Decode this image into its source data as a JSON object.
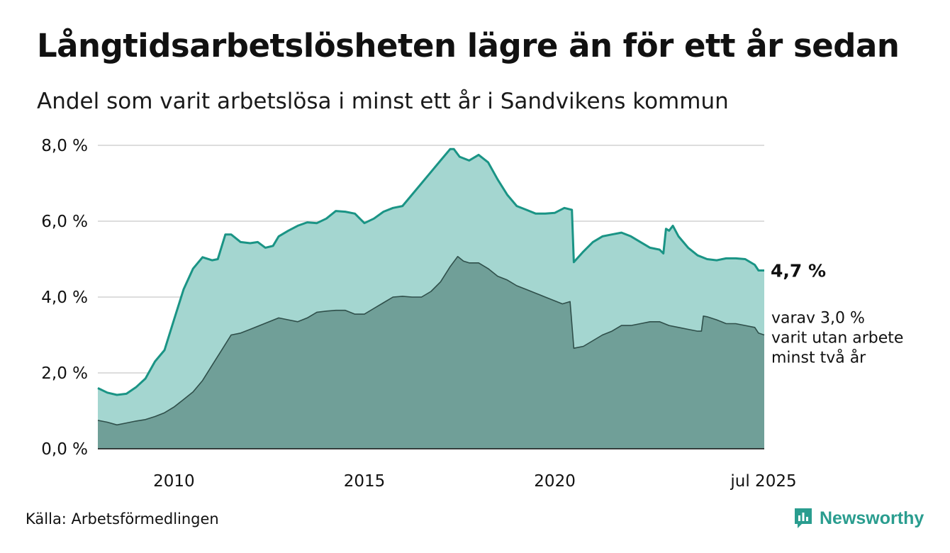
{
  "title": "Långtidsarbetslösheten lägre än för ett år sedan",
  "subtitle": "Andel som varit arbetslösa i minst ett år i Sandvikens kommun",
  "source": "Källa: Arbetsförmedlingen",
  "brand": "Newsworthy",
  "end_label": "4,7 %",
  "sub_label_lines": [
    "varav 3,0 %",
    "varit utan arbete",
    "minst två år"
  ],
  "colors": {
    "upper_line": "#1a9485",
    "upper_fill": "#a4d6d0",
    "lower_line": "#2f4f4a",
    "lower_fill": "#709f98",
    "grid": "#dddddd",
    "brand": "#2a9d8f"
  },
  "chart_data": {
    "type": "area",
    "title": "Långtidsarbetslösheten lägre än för ett år sedan",
    "ylim": [
      0,
      8
    ],
    "xlim": [
      2008.0,
      2025.5
    ],
    "y_ticks": [
      0,
      2,
      4,
      6,
      8
    ],
    "y_tick_labels": [
      "0,0 %",
      "2,0 %",
      "4,0 %",
      "6,0 %",
      "8,0 %"
    ],
    "x_ticks": [
      2010,
      2015,
      2020,
      2025.5
    ],
    "x_tick_labels": [
      "2010",
      "2015",
      "2020",
      "jul 2025"
    ],
    "grid": true,
    "series": [
      {
        "points": [
          [
            2008.0,
            1.6
          ],
          [
            2008.25,
            1.48
          ],
          [
            2008.5,
            1.42
          ],
          [
            2008.75,
            1.45
          ],
          [
            2009.0,
            1.62
          ],
          [
            2009.25,
            1.85
          ],
          [
            2009.5,
            2.3
          ],
          [
            2009.75,
            2.6
          ],
          [
            2010.0,
            3.4
          ],
          [
            2010.25,
            4.2
          ],
          [
            2010.5,
            4.75
          ],
          [
            2010.75,
            5.05
          ],
          [
            2011.0,
            4.97
          ],
          [
            2011.15,
            5.0
          ],
          [
            2011.35,
            5.65
          ],
          [
            2011.5,
            5.65
          ],
          [
            2011.75,
            5.45
          ],
          [
            2012.0,
            5.42
          ],
          [
            2012.2,
            5.45
          ],
          [
            2012.4,
            5.3
          ],
          [
            2012.6,
            5.35
          ],
          [
            2012.75,
            5.6
          ],
          [
            2013.0,
            5.75
          ],
          [
            2013.25,
            5.88
          ],
          [
            2013.5,
            5.97
          ],
          [
            2013.75,
            5.95
          ],
          [
            2014.0,
            6.07
          ],
          [
            2014.25,
            6.27
          ],
          [
            2014.5,
            6.25
          ],
          [
            2014.75,
            6.2
          ],
          [
            2015.0,
            5.95
          ],
          [
            2015.25,
            6.07
          ],
          [
            2015.5,
            6.25
          ],
          [
            2015.75,
            6.35
          ],
          [
            2016.0,
            6.4
          ],
          [
            2016.25,
            6.7
          ],
          [
            2016.5,
            7.0
          ],
          [
            2016.75,
            7.3
          ],
          [
            2017.0,
            7.6
          ],
          [
            2017.25,
            7.9
          ],
          [
            2017.35,
            7.9
          ],
          [
            2017.5,
            7.7
          ],
          [
            2017.75,
            7.6
          ],
          [
            2018.0,
            7.75
          ],
          [
            2018.25,
            7.55
          ],
          [
            2018.5,
            7.1
          ],
          [
            2018.75,
            6.7
          ],
          [
            2019.0,
            6.4
          ],
          [
            2019.25,
            6.3
          ],
          [
            2019.5,
            6.2
          ],
          [
            2019.75,
            6.2
          ],
          [
            2020.0,
            6.22
          ],
          [
            2020.25,
            6.35
          ],
          [
            2020.45,
            6.3
          ],
          [
            2020.5,
            4.92
          ],
          [
            2020.75,
            5.2
          ],
          [
            2021.0,
            5.45
          ],
          [
            2021.25,
            5.6
          ],
          [
            2021.5,
            5.65
          ],
          [
            2021.75,
            5.7
          ],
          [
            2022.0,
            5.6
          ],
          [
            2022.25,
            5.45
          ],
          [
            2022.5,
            5.3
          ],
          [
            2022.75,
            5.25
          ],
          [
            2022.85,
            5.15
          ],
          [
            2022.92,
            5.8
          ],
          [
            2023.0,
            5.75
          ],
          [
            2023.1,
            5.88
          ],
          [
            2023.25,
            5.6
          ],
          [
            2023.5,
            5.3
          ],
          [
            2023.75,
            5.1
          ],
          [
            2024.0,
            5.0
          ],
          [
            2024.25,
            4.97
          ],
          [
            2024.5,
            5.02
          ],
          [
            2024.75,
            5.02
          ],
          [
            2025.0,
            5.0
          ],
          [
            2025.25,
            4.85
          ],
          [
            2025.35,
            4.7
          ],
          [
            2025.5,
            4.7
          ]
        ]
      },
      {
        "points": [
          [
            2008.0,
            0.75
          ],
          [
            2008.25,
            0.7
          ],
          [
            2008.5,
            0.63
          ],
          [
            2008.75,
            0.68
          ],
          [
            2009.0,
            0.73
          ],
          [
            2009.25,
            0.77
          ],
          [
            2009.5,
            0.85
          ],
          [
            2009.75,
            0.95
          ],
          [
            2010.0,
            1.1
          ],
          [
            2010.25,
            1.3
          ],
          [
            2010.5,
            1.5
          ],
          [
            2010.75,
            1.8
          ],
          [
            2011.0,
            2.2
          ],
          [
            2011.25,
            2.6
          ],
          [
            2011.5,
            3.0
          ],
          [
            2011.75,
            3.05
          ],
          [
            2012.0,
            3.15
          ],
          [
            2012.25,
            3.25
          ],
          [
            2012.5,
            3.35
          ],
          [
            2012.75,
            3.45
          ],
          [
            2013.0,
            3.4
          ],
          [
            2013.25,
            3.35
          ],
          [
            2013.5,
            3.45
          ],
          [
            2013.75,
            3.6
          ],
          [
            2014.0,
            3.63
          ],
          [
            2014.25,
            3.65
          ],
          [
            2014.5,
            3.65
          ],
          [
            2014.75,
            3.55
          ],
          [
            2015.0,
            3.55
          ],
          [
            2015.25,
            3.7
          ],
          [
            2015.5,
            3.85
          ],
          [
            2015.75,
            4.0
          ],
          [
            2016.0,
            4.02
          ],
          [
            2016.25,
            4.0
          ],
          [
            2016.5,
            4.0
          ],
          [
            2016.75,
            4.15
          ],
          [
            2017.0,
            4.4
          ],
          [
            2017.25,
            4.8
          ],
          [
            2017.45,
            5.07
          ],
          [
            2017.6,
            4.95
          ],
          [
            2017.75,
            4.9
          ],
          [
            2018.0,
            4.9
          ],
          [
            2018.25,
            4.75
          ],
          [
            2018.5,
            4.55
          ],
          [
            2018.75,
            4.45
          ],
          [
            2019.0,
            4.3
          ],
          [
            2019.25,
            4.2
          ],
          [
            2019.5,
            4.1
          ],
          [
            2019.75,
            4.0
          ],
          [
            2020.0,
            3.9
          ],
          [
            2020.2,
            3.82
          ],
          [
            2020.4,
            3.88
          ],
          [
            2020.5,
            2.65
          ],
          [
            2020.75,
            2.7
          ],
          [
            2021.0,
            2.85
          ],
          [
            2021.25,
            3.0
          ],
          [
            2021.5,
            3.1
          ],
          [
            2021.75,
            3.25
          ],
          [
            2022.0,
            3.25
          ],
          [
            2022.25,
            3.3
          ],
          [
            2022.5,
            3.35
          ],
          [
            2022.75,
            3.35
          ],
          [
            2023.0,
            3.25
          ],
          [
            2023.25,
            3.2
          ],
          [
            2023.5,
            3.15
          ],
          [
            2023.75,
            3.1
          ],
          [
            2023.85,
            3.1
          ],
          [
            2023.9,
            3.5
          ],
          [
            2024.0,
            3.48
          ],
          [
            2024.25,
            3.4
          ],
          [
            2024.5,
            3.3
          ],
          [
            2024.75,
            3.3
          ],
          [
            2025.0,
            3.25
          ],
          [
            2025.25,
            3.2
          ],
          [
            2025.35,
            3.05
          ],
          [
            2025.5,
            3.0
          ]
        ]
      }
    ]
  }
}
